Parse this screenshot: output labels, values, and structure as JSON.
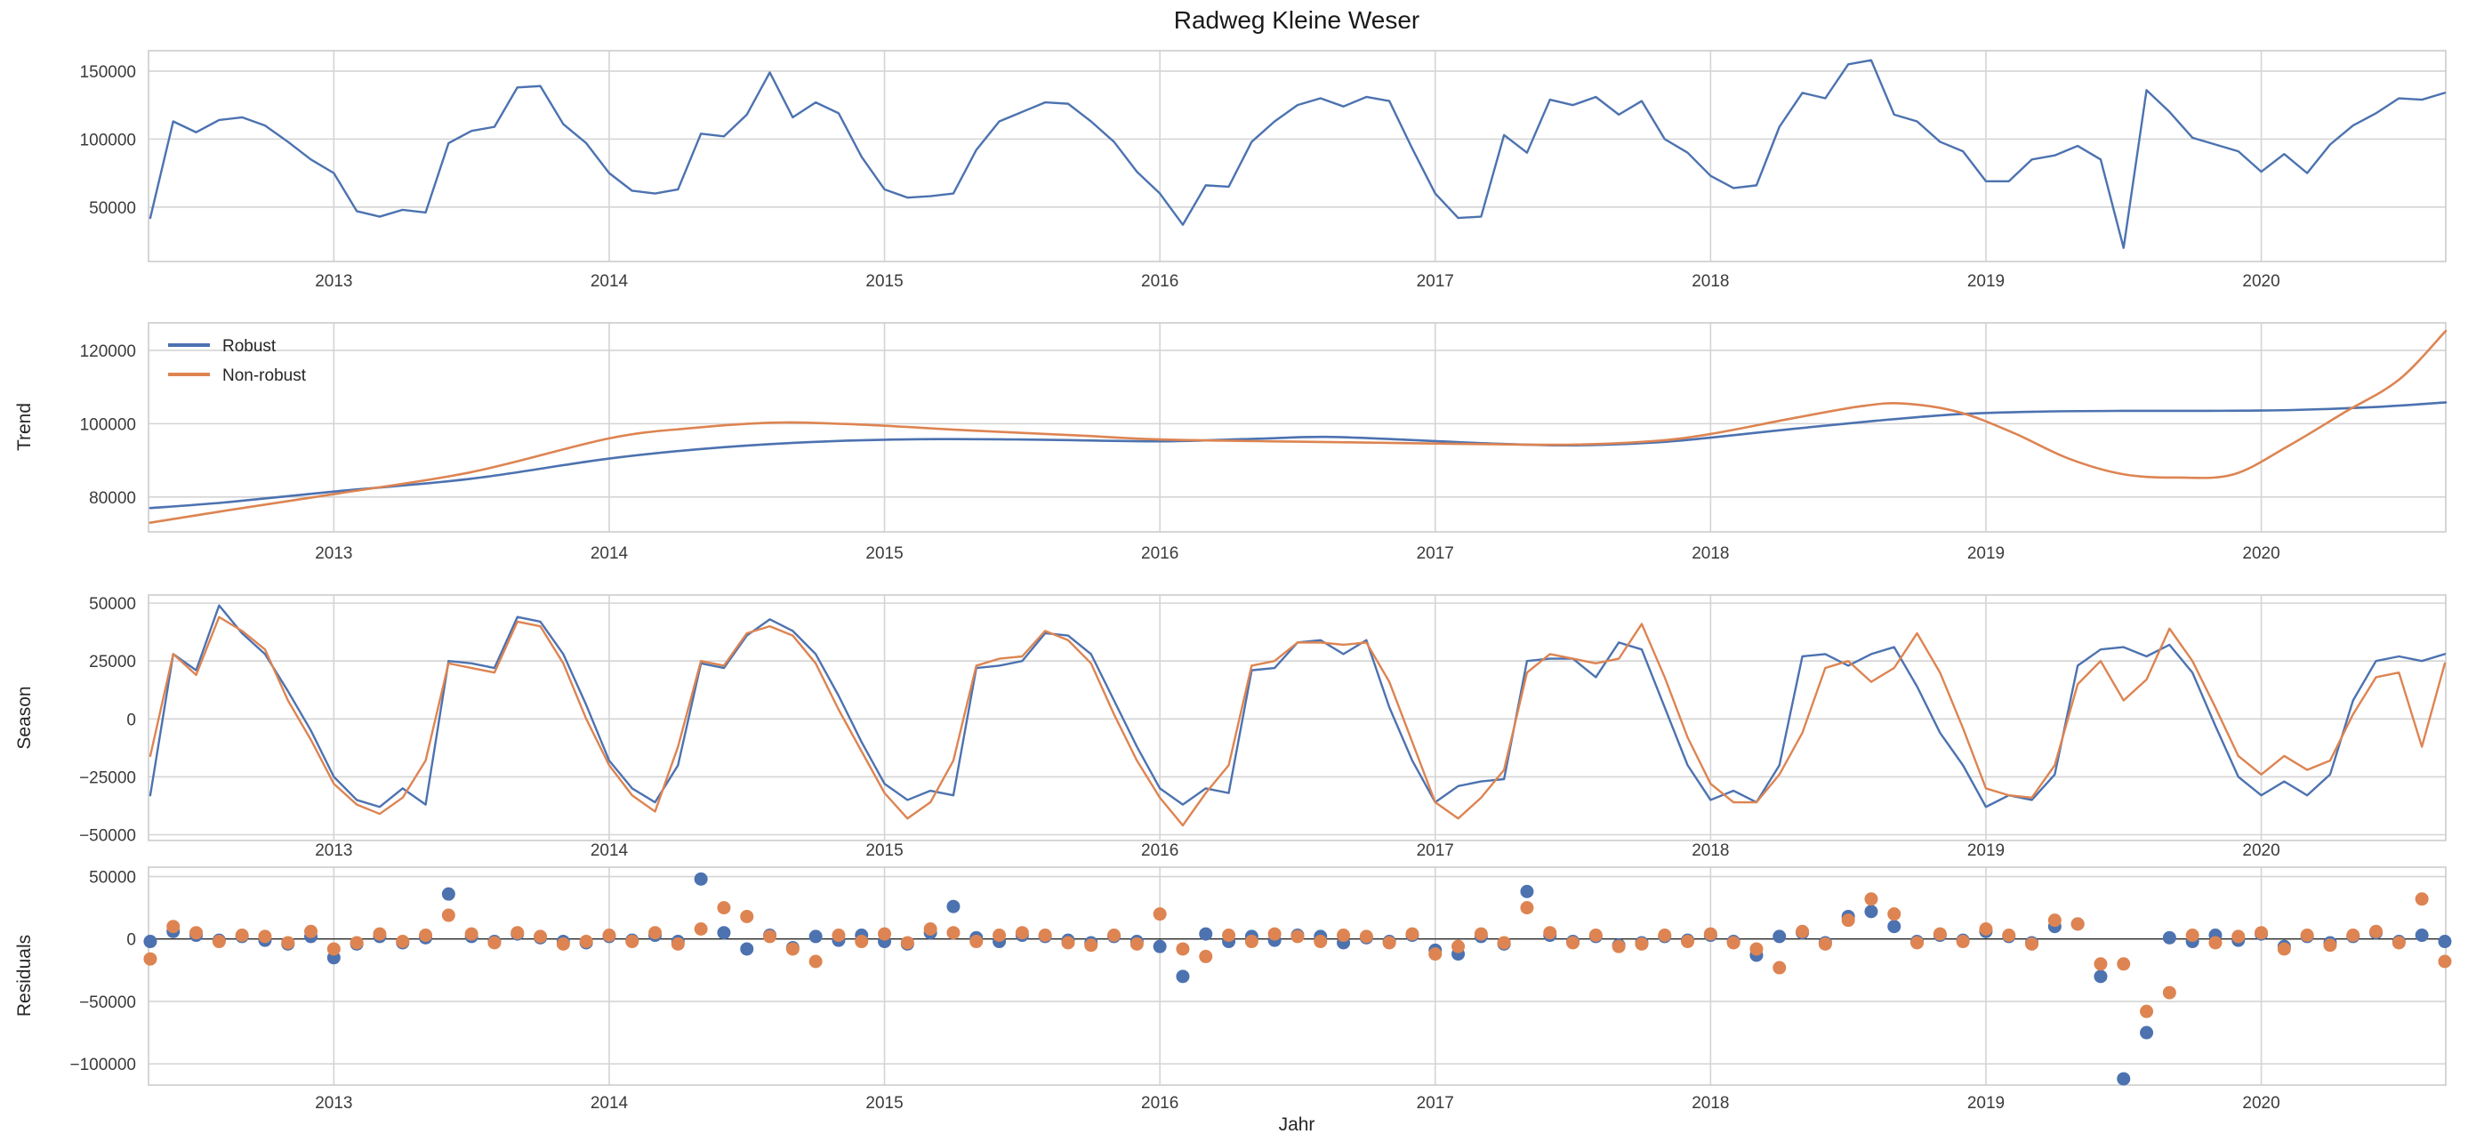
{
  "title": "Radweg Kleine Weser",
  "xlabel": "Jahr",
  "colors": {
    "robust_blue": "#4C72B0",
    "nonrobust_orange": "#DD8452",
    "grid": "#D4D4D4",
    "spine": "#CCCCCC",
    "zero_line": "#2b2b2b",
    "text": "#262626",
    "background": "#FFFFFF"
  },
  "legend": {
    "entries": [
      {
        "label": "Robust",
        "color_key": "robust_blue"
      },
      {
        "label": "Non-robust",
        "color_key": "nonrobust_orange"
      }
    ],
    "position": "upper-left-of-trend-panel",
    "frame": false
  },
  "x_axis": {
    "x_start": 2012.3333,
    "x_step": 0.0833333,
    "x_min": 2012.327,
    "x_max": 2020.67,
    "xticks": [
      2013,
      2014,
      2015,
      2016,
      2017,
      2018,
      2019,
      2020
    ],
    "grid": true
  },
  "chart_data": [
    {
      "type": "line",
      "ylabel": "",
      "yticks": [
        50000,
        100000,
        150000
      ],
      "ylim": [
        10000,
        165000
      ],
      "series": [
        {
          "name": "observed",
          "color_key": "robust_blue",
          "values": [
            42000,
            113000,
            105000,
            114000,
            116000,
            110000,
            98000,
            85000,
            75000,
            47000,
            43000,
            48000,
            46000,
            97000,
            106000,
            109000,
            138000,
            139000,
            111000,
            97000,
            75000,
            62000,
            60000,
            63000,
            104000,
            102000,
            118000,
            149000,
            116000,
            127000,
            119000,
            87000,
            63000,
            57000,
            58000,
            60000,
            92000,
            113000,
            120000,
            127000,
            126000,
            113000,
            98000,
            76000,
            60000,
            37000,
            66000,
            65000,
            98000,
            113000,
            125000,
            130000,
            124000,
            131000,
            128000,
            93000,
            60000,
            42000,
            43000,
            103000,
            90000,
            129000,
            125000,
            131000,
            118000,
            128000,
            100000,
            90000,
            73000,
            64000,
            66000,
            109000,
            134000,
            130000,
            155000,
            158000,
            118000,
            113000,
            98000,
            91000,
            69000,
            69000,
            85000,
            88000,
            95000,
            85000,
            20000,
            136000,
            120000,
            101000,
            96000,
            91000,
            76000,
            89000,
            75000,
            96000,
            110000,
            119000,
            130000,
            129000,
            134000
          ]
        }
      ]
    },
    {
      "type": "line-smooth",
      "ylabel": "Trend",
      "yticks": [
        80000,
        100000,
        120000
      ],
      "ylim": [
        70500,
        127500
      ],
      "series": [
        {
          "name": "Robust",
          "color_key": "robust_blue",
          "points": [
            [
              2012.333,
              77000
            ],
            [
              2012.6,
              78500
            ],
            [
              2013.0,
              81500
            ],
            [
              2013.5,
              85000
            ],
            [
              2014.0,
              90500
            ],
            [
              2014.4,
              93500
            ],
            [
              2014.8,
              95200
            ],
            [
              2015.2,
              95800
            ],
            [
              2015.6,
              95600
            ],
            [
              2016.0,
              95200
            ],
            [
              2016.35,
              95900
            ],
            [
              2016.6,
              96400
            ],
            [
              2016.9,
              95600
            ],
            [
              2017.2,
              94600
            ],
            [
              2017.5,
              94100
            ],
            [
              2017.8,
              94900
            ],
            [
              2018.0,
              96200
            ],
            [
              2018.3,
              98600
            ],
            [
              2018.6,
              100800
            ],
            [
              2018.9,
              102600
            ],
            [
              2019.2,
              103300
            ],
            [
              2019.5,
              103500
            ],
            [
              2019.8,
              103500
            ],
            [
              2020.1,
              103700
            ],
            [
              2020.4,
              104500
            ],
            [
              2020.67,
              105800
            ]
          ]
        },
        {
          "name": "Non-robust",
          "color_key": "nonrobust_orange",
          "points": [
            [
              2012.333,
              73000
            ],
            [
              2012.6,
              76200
            ],
            [
              2013.0,
              80800
            ],
            [
              2013.5,
              86800
            ],
            [
              2014.0,
              96000
            ],
            [
              2014.3,
              98800
            ],
            [
              2014.6,
              100300
            ],
            [
              2014.9,
              99800
            ],
            [
              2015.3,
              98200
            ],
            [
              2015.7,
              96800
            ],
            [
              2016.0,
              95700
            ],
            [
              2016.4,
              95200
            ],
            [
              2016.8,
              94800
            ],
            [
              2017.2,
              94400
            ],
            [
              2017.5,
              94300
            ],
            [
              2017.8,
              95300
            ],
            [
              2018.0,
              97200
            ],
            [
              2018.3,
              101500
            ],
            [
              2018.55,
              104800
            ],
            [
              2018.7,
              105500
            ],
            [
              2018.9,
              103200
            ],
            [
              2019.1,
              97500
            ],
            [
              2019.3,
              90500
            ],
            [
              2019.5,
              86200
            ],
            [
              2019.7,
              85300
            ],
            [
              2019.9,
              86200
            ],
            [
              2020.1,
              94000
            ],
            [
              2020.3,
              103000
            ],
            [
              2020.5,
              112000
            ],
            [
              2020.67,
              125300
            ]
          ]
        }
      ]
    },
    {
      "type": "line",
      "ylabel": "Season",
      "yticks": [
        -50000,
        -25000,
        0,
        25000,
        50000
      ],
      "ylim": [
        -52500,
        53500
      ],
      "series": [
        {
          "name": "Robust",
          "color_key": "robust_blue",
          "values": [
            -33000,
            28000,
            21000,
            49000,
            37000,
            28000,
            12000,
            -5000,
            -25000,
            -35000,
            -38000,
            -30000,
            -37000,
            25000,
            24000,
            22000,
            44000,
            42000,
            28000,
            6000,
            -18000,
            -30000,
            -36000,
            -20000,
            24000,
            22000,
            36000,
            43000,
            38000,
            28000,
            10000,
            -10000,
            -28000,
            -35000,
            -31000,
            -33000,
            22000,
            23000,
            25000,
            37000,
            36000,
            28000,
            8000,
            -12000,
            -30000,
            -37000,
            -30000,
            -32000,
            21000,
            22000,
            33000,
            34000,
            28000,
            34000,
            5000,
            -18000,
            -36000,
            -29000,
            -27000,
            -26000,
            25000,
            26000,
            26000,
            18000,
            33000,
            30000,
            5000,
            -20000,
            -35000,
            -31000,
            -36000,
            -20000,
            27000,
            28000,
            23000,
            28000,
            31000,
            14000,
            -6000,
            -20000,
            -38000,
            -33000,
            -35000,
            -24000,
            23000,
            30000,
            31000,
            27000,
            32000,
            20000,
            -3000,
            -25000,
            -33000,
            -27000,
            -33000,
            -24000,
            8000,
            25000,
            27000,
            25000,
            28000
          ]
        },
        {
          "name": "Non-robust",
          "color_key": "nonrobust_orange",
          "values": [
            -16000,
            28000,
            19000,
            44000,
            38000,
            30000,
            8000,
            -9000,
            -28000,
            -37000,
            -41000,
            -34000,
            -18000,
            24000,
            22000,
            20000,
            42000,
            40000,
            24000,
            0,
            -20000,
            -33000,
            -40000,
            -12000,
            25000,
            23000,
            37000,
            40000,
            36000,
            24000,
            4000,
            -14000,
            -32000,
            -43000,
            -36000,
            -18000,
            23000,
            26000,
            27000,
            38000,
            34000,
            24000,
            2000,
            -18000,
            -34000,
            -46000,
            -32000,
            -20000,
            23000,
            25000,
            33000,
            33000,
            32000,
            33000,
            16000,
            -10000,
            -36000,
            -43000,
            -34000,
            -22000,
            20000,
            28000,
            26000,
            24000,
            26000,
            41000,
            18000,
            -8000,
            -28000,
            -36000,
            -36000,
            -24000,
            -6000,
            22000,
            25000,
            16000,
            22000,
            37000,
            20000,
            -4000,
            -30000,
            -33000,
            -34000,
            -20000,
            15000,
            25000,
            8000,
            17000,
            39000,
            25000,
            5000,
            -16000,
            -24000,
            -16000,
            -22000,
            -18000,
            2000,
            18000,
            20000,
            -12000,
            24000
          ]
        }
      ]
    },
    {
      "type": "scatter",
      "ylabel": "Residuals",
      "yticks": [
        -100000,
        -50000,
        0,
        50000
      ],
      "ylim": [
        -117000,
        57500
      ],
      "zero_line": true,
      "series": [
        {
          "name": "Robust",
          "color_key": "robust_blue",
          "values": [
            -2000,
            6000,
            3000,
            -1000,
            2000,
            -1000,
            -4000,
            2000,
            -15000,
            -4000,
            2000,
            -3000,
            1000,
            36000,
            2000,
            -2000,
            4000,
            1000,
            -2000,
            -3000,
            2000,
            -1000,
            3000,
            -2000,
            48000,
            5000,
            -8000,
            3000,
            -7000,
            2000,
            -1000,
            3000,
            -2000,
            -4000,
            5000,
            26000,
            1000,
            -2000,
            3000,
            2000,
            -1000,
            -3000,
            2000,
            -2000,
            -6000,
            -30000,
            4000,
            -2000,
            2000,
            -1000,
            3000,
            2000,
            -3000,
            1000,
            -2000,
            3000,
            -9000,
            -12000,
            2000,
            -4000,
            38000,
            3000,
            -2000,
            2000,
            -5000,
            -3000,
            2000,
            -1000,
            3000,
            -2000,
            -13000,
            2000,
            5000,
            -3000,
            18000,
            22000,
            10000,
            -2000,
            3000,
            -1000,
            6000,
            2000,
            -3000,
            10000,
            12000,
            -30000,
            -112000,
            -75000,
            1000,
            -2000,
            3000,
            -1000,
            4000,
            -6000,
            2000,
            -3000,
            2000,
            5000,
            -2000,
            3000,
            -2000
          ]
        },
        {
          "name": "Non-robust",
          "color_key": "nonrobust_orange",
          "values": [
            -16000,
            10000,
            5000,
            -2000,
            3000,
            2000,
            -3000,
            6000,
            -8000,
            -3000,
            4000,
            -2000,
            3000,
            19000,
            4000,
            -3000,
            5000,
            2000,
            -4000,
            -2000,
            3000,
            -2000,
            5000,
            -4000,
            8000,
            25000,
            18000,
            2000,
            -8000,
            -18000,
            3000,
            -2000,
            4000,
            -3000,
            8000,
            5000,
            -2000,
            3000,
            5000,
            3000,
            -3000,
            -5000,
            3000,
            -4000,
            20000,
            -8000,
            -14000,
            3000,
            -2000,
            4000,
            2000,
            -2000,
            3000,
            2000,
            -3000,
            4000,
            -12000,
            -6000,
            4000,
            -3000,
            25000,
            5000,
            -3000,
            3000,
            -6000,
            -4000,
            3000,
            -2000,
            4000,
            -3000,
            -8000,
            -23000,
            6000,
            -4000,
            15000,
            32000,
            20000,
            -3000,
            4000,
            -2000,
            8000,
            3000,
            -4000,
            15000,
            12000,
            -20000,
            -20000,
            -58000,
            -43000,
            3000,
            -3000,
            2000,
            5000,
            -8000,
            3000,
            -5000,
            3000,
            6000,
            -3000,
            32000,
            -18000
          ]
        }
      ]
    }
  ]
}
